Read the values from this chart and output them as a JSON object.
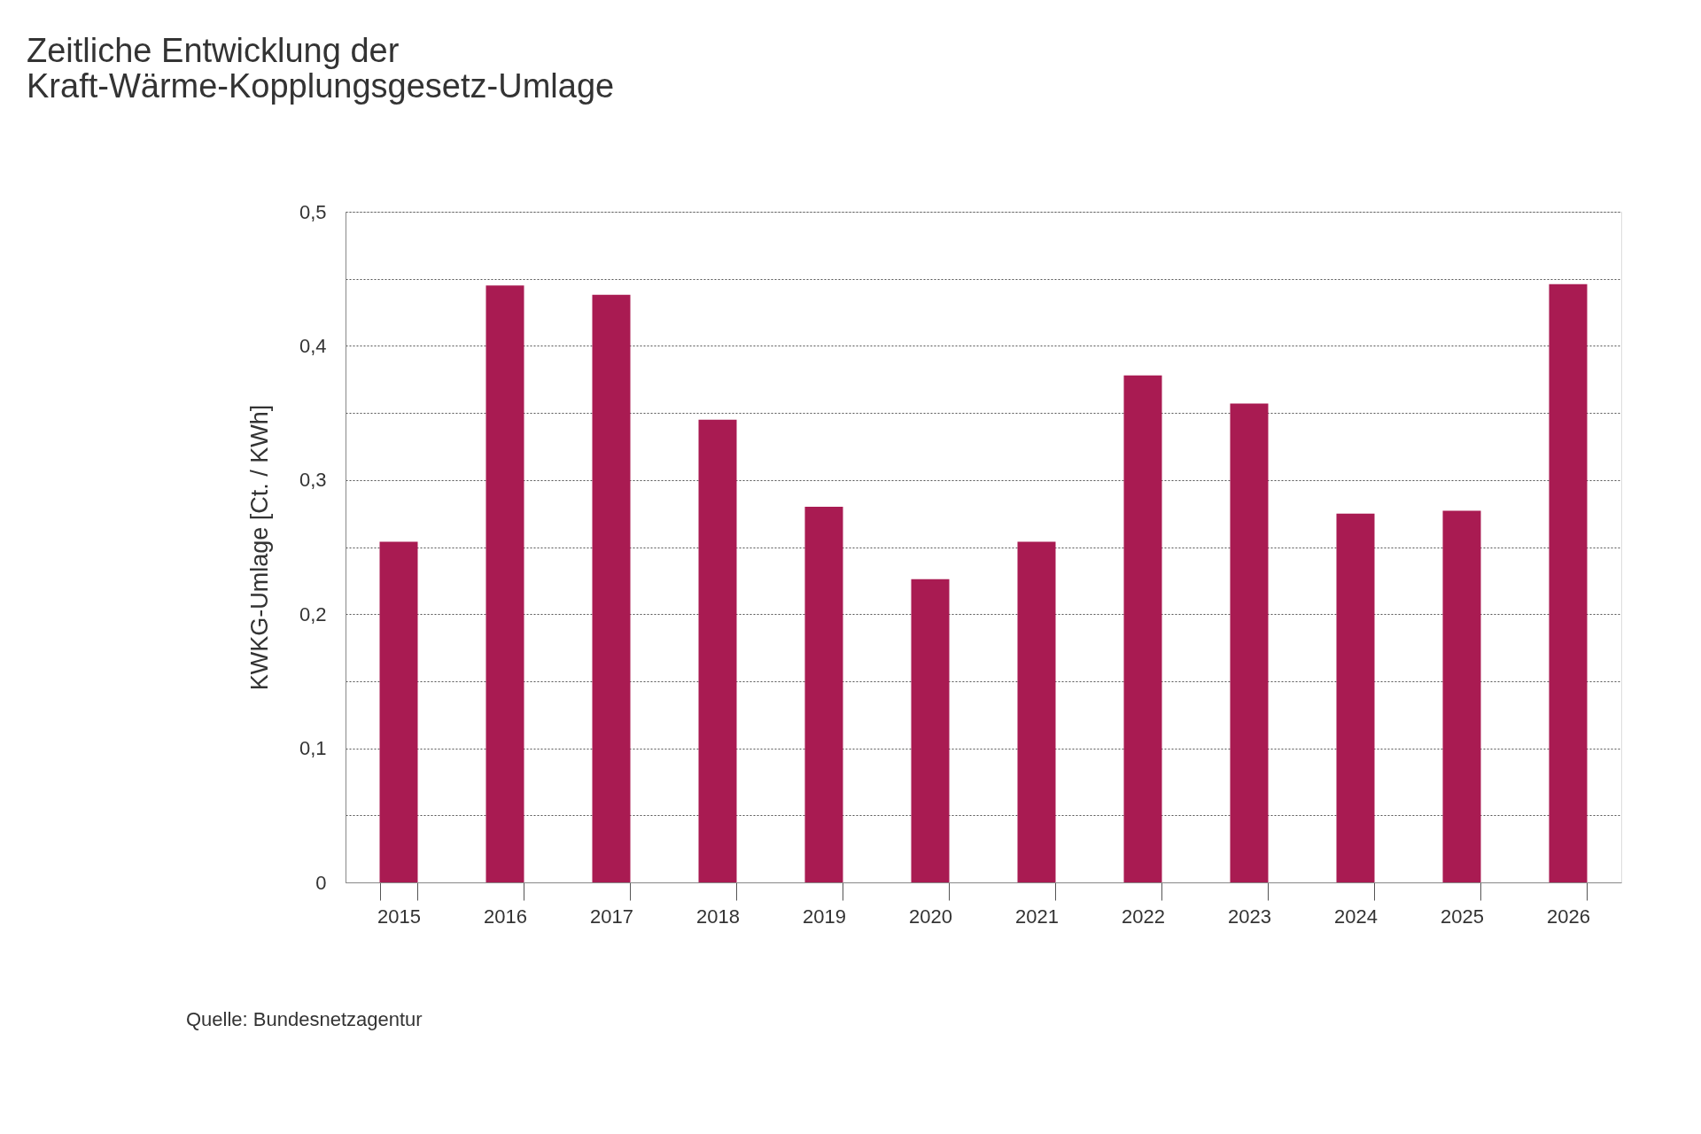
{
  "chart_data": {
    "type": "bar",
    "title": "Zeitliche Entwicklung der\nKraft-Wärme-Kopplungsgesetz-Umlage",
    "ylabel": "KWKG-Umlage [Ct. / KWh]",
    "categories": [
      "2015",
      "2016",
      "2017",
      "2018",
      "2019",
      "2020",
      "2021",
      "2022",
      "2023",
      "2024",
      "2025",
      "2026"
    ],
    "values": [
      0.254,
      0.445,
      0.438,
      0.345,
      0.28,
      0.226,
      0.254,
      0.378,
      0.357,
      0.275,
      0.277,
      0.446
    ],
    "color": "#a91b52",
    "ylim": [
      0,
      0.5
    ],
    "yticks": [
      0,
      {
        "value": 0.05,
        "label": null
      },
      {
        "value": 0.1,
        "label": "0,1"
      },
      {
        "value": 0.15,
        "label": null
      },
      {
        "value": 0.2,
        "label": "0,2"
      },
      {
        "value": 0.25,
        "label": null
      },
      {
        "value": 0.3,
        "label": "0,3"
      },
      {
        "value": 0.35,
        "label": null
      },
      {
        "value": 0.4,
        "label": "0,4"
      },
      {
        "value": 0.45,
        "label": null
      },
      {
        "value": 0.5,
        "label": "0,5"
      }
    ],
    "grid": "y",
    "annotations": [
      "Quelle: Bundesnetzagentur"
    ]
  }
}
